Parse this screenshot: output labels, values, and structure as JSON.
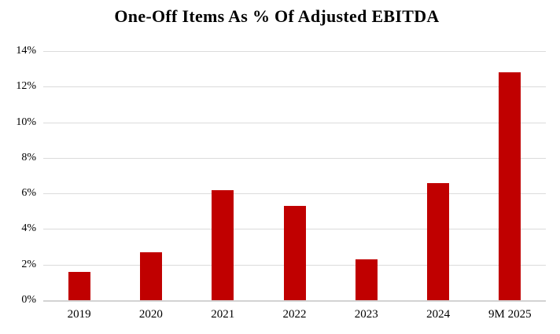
{
  "chart_data": {
    "type": "bar",
    "title": "One-Off Items As % Of Adjusted EBITDA",
    "categories": [
      "2019",
      "2020",
      "2021",
      "2022",
      "2023",
      "2024",
      "9M 2025"
    ],
    "values": [
      1.6,
      2.7,
      6.2,
      5.3,
      2.3,
      6.6,
      12.8
    ],
    "xlabel": "",
    "ylabel": "",
    "ylim": [
      0,
      14
    ],
    "ytick_step": 2,
    "ytick_labels": [
      "0%",
      "2%",
      "4%",
      "6%",
      "8%",
      "10%",
      "12%",
      "14%"
    ],
    "grid": true,
    "legend": "none",
    "colors": {
      "bar": "#C00000",
      "gridline": "#DBDBDB",
      "axis_line": "#D3D3D3",
      "text": "#000000",
      "background": "#FFFFFF"
    }
  }
}
